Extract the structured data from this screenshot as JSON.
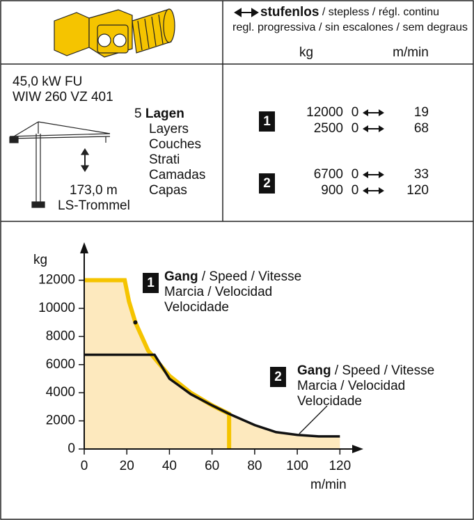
{
  "header": {
    "mode_bold": "stufenlos",
    "mode_rest": " / stepless / régl. continu",
    "languages": "regl. progressiva / sin escalones / sem degraus",
    "unit_load": "kg",
    "unit_speed": "m/min"
  },
  "motor": {
    "power": "45,0 kW FU",
    "model": "WIW 260 VZ 401",
    "layer_count": "5",
    "layers_label": "Lagen",
    "layer_translations": [
      "Layers",
      "Couches",
      "Strati",
      "Camadas",
      "Capas"
    ],
    "rope_length": "173,0 m",
    "drum": "LS-Trommel"
  },
  "speeds": [
    {
      "gear": "1",
      "rows": [
        {
          "kg": 12000,
          "from": 0,
          "to": 19
        },
        {
          "kg": 2500,
          "from": 0,
          "to": 68
        }
      ]
    },
    {
      "gear": "2",
      "rows": [
        {
          "kg": 6700,
          "from": 0,
          "to": 33
        },
        {
          "kg": 900,
          "from": 0,
          "to": 120
        }
      ]
    }
  ],
  "chart_data": {
    "type": "line",
    "y_label": "kg",
    "x_label": "m/min",
    "xlim": [
      0,
      131
    ],
    "ylim": [
      0,
      14700
    ],
    "xticks": [
      0,
      20,
      40,
      60,
      80,
      100,
      120
    ],
    "yticks": [
      0,
      2000,
      4000,
      6000,
      8000,
      10000,
      12000
    ],
    "fill": "#fde9be",
    "annotations": [
      {
        "bold": "Gang",
        "rest": " / Speed / Vitesse",
        "lines": [
          "Marcia / Velocidad",
          "Velocidade"
        ]
      },
      {
        "bold": "Gang",
        "rest": " / Speed / Vitesse",
        "lines": [
          "Marcia / Velocidad",
          "Velocidade"
        ]
      }
    ],
    "marker": {
      "x": 24,
      "y": 9000
    },
    "series": [
      {
        "name": "1",
        "color": "#f5c400",
        "x": [
          0,
          19,
          21,
          24,
          30,
          40,
          50,
          60,
          68,
          68
        ],
        "values": [
          12000,
          12000,
          10500,
          9000,
          7000,
          5200,
          4000,
          3100,
          2500,
          0
        ]
      },
      {
        "name": "2",
        "color": "#111111",
        "x": [
          0,
          33,
          40,
          50,
          60,
          68,
          80,
          90,
          100,
          110,
          120
        ],
        "values": [
          6700,
          6700,
          5000,
          3900,
          3100,
          2500,
          1700,
          1200,
          1000,
          900,
          900
        ]
      }
    ]
  }
}
